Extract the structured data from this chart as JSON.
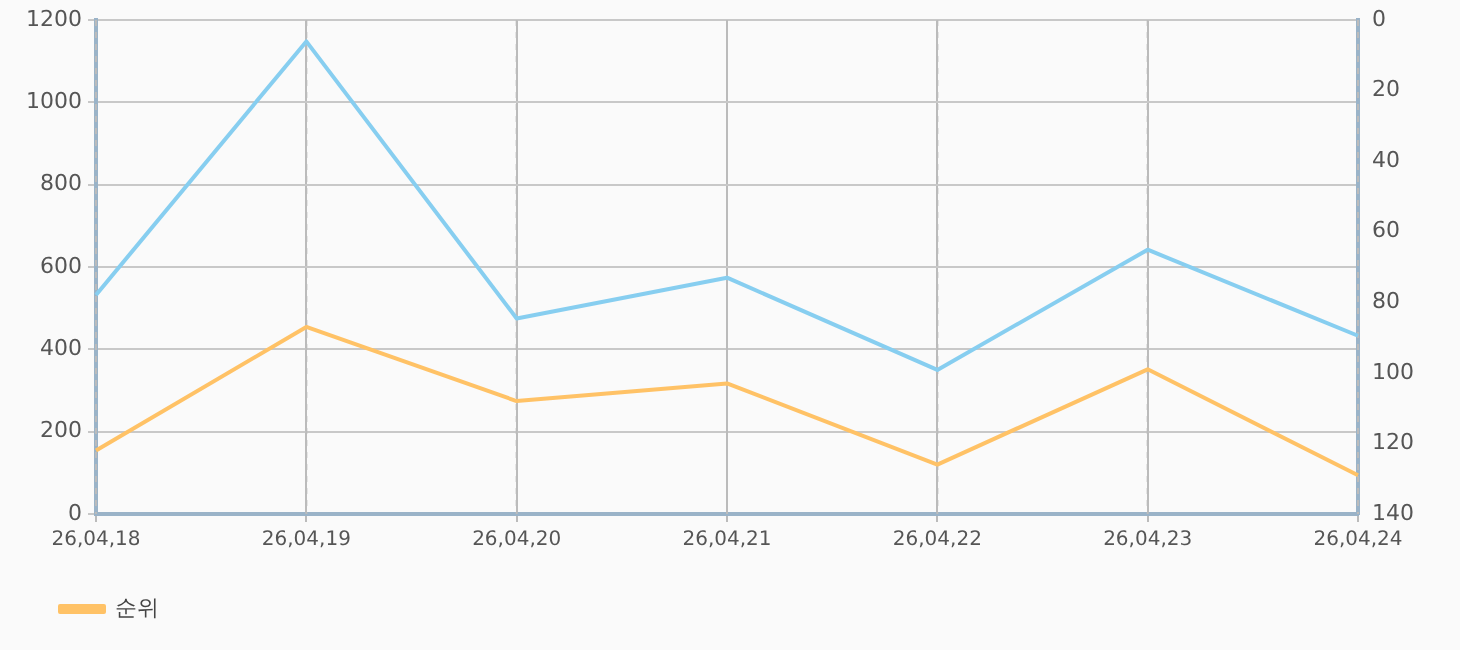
{
  "chart_data": {
    "type": "line",
    "categories": [
      "26,04,18",
      "26,04,19",
      "26,04,20",
      "26,04,21",
      "26,04,22",
      "26,04,23",
      "26,04,24"
    ],
    "series": [
      {
        "color": "#87cef0",
        "values": [
          532,
          1148,
          475,
          574,
          350,
          642,
          433
        ]
      },
      {
        "name": "순위",
        "color": "#ffc266",
        "axis": "y2",
        "values": [
          122,
          87,
          108,
          103,
          126,
          99,
          129
        ]
      }
    ],
    "ylim": [
      0,
      1200
    ],
    "yticks": [
      0,
      200,
      400,
      600,
      800,
      1000,
      1200
    ],
    "y2lim": [
      140,
      0
    ],
    "y2ticks": [
      0,
      20,
      40,
      60,
      80,
      100,
      120,
      140
    ],
    "grid": true,
    "legend": "bottom left",
    "marker": "none",
    "line_style": "solid"
  }
}
